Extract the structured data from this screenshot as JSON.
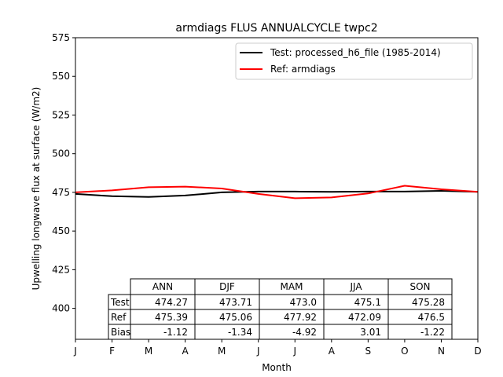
{
  "chart_data": {
    "type": "line",
    "title": "armdiags FLUS ANNUALCYCLE twpc2",
    "xlabel": "Month",
    "ylabel": "Upwelling longwave flux at surface (W/m2)",
    "categories": [
      "J",
      "F",
      "M",
      "A",
      "M",
      "J",
      "J",
      "A",
      "S",
      "O",
      "N",
      "D"
    ],
    "xlim": [
      0,
      11
    ],
    "ylim": [
      380,
      575
    ],
    "yticks": [
      400,
      425,
      450,
      475,
      500,
      525,
      550,
      575
    ],
    "grid": false,
    "legend_position": "upper-right",
    "series": [
      {
        "name": "Test: processed_h6_file (1985-2014)",
        "color": "#000000",
        "values": [
          474.0,
          472.5,
          472.0,
          473.0,
          475.0,
          475.5,
          475.5,
          475.3,
          475.5,
          475.5,
          476.0,
          475.3
        ]
      },
      {
        "name": "Ref: armdiags",
        "color": "#ff0000",
        "values": [
          475.0,
          476.3,
          478.3,
          478.7,
          477.5,
          474.0,
          471.2,
          471.7,
          474.3,
          479.3,
          477.0,
          475.3
        ]
      }
    ],
    "table": {
      "columns": [
        "ANN",
        "DJF",
        "MAM",
        "JJA",
        "SON"
      ],
      "rows": [
        {
          "label": "Test",
          "values": [
            "474.27",
            "473.71",
            "473.0",
            "475.1",
            "475.28"
          ]
        },
        {
          "label": "Ref",
          "values": [
            "475.39",
            "475.06",
            "477.92",
            "472.09",
            "476.5"
          ]
        },
        {
          "label": "Bias",
          "values": [
            "-1.12",
            "-1.34",
            "-4.92",
            "3.01",
            "-1.22"
          ]
        }
      ]
    }
  }
}
